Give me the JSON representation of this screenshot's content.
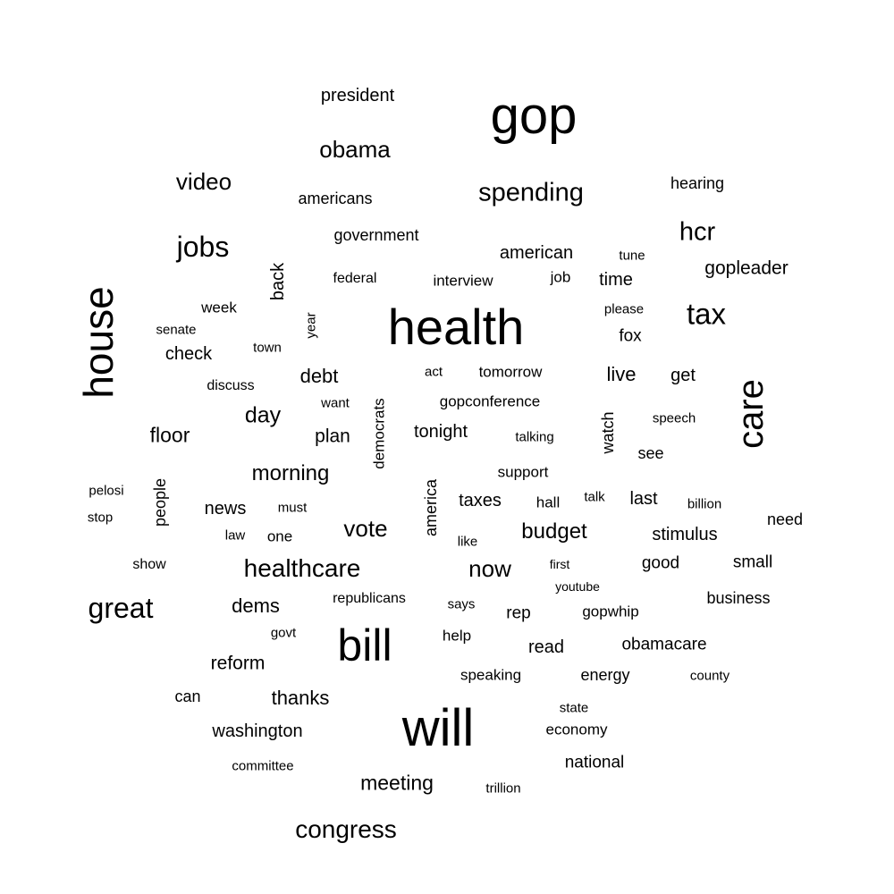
{
  "text_color": "#000000",
  "background_color": "#ffffff",
  "words": [
    {
      "text": "gop",
      "rotated": false
    },
    {
      "text": "health",
      "rotated": false
    },
    {
      "text": "will",
      "rotated": false
    },
    {
      "text": "bill",
      "rotated": false
    },
    {
      "text": "house",
      "rotated": true
    },
    {
      "text": "care",
      "rotated": true
    },
    {
      "text": "president",
      "rotated": false
    },
    {
      "text": "obama",
      "rotated": false
    },
    {
      "text": "spending",
      "rotated": false
    },
    {
      "text": "video",
      "rotated": false
    },
    {
      "text": "americans",
      "rotated": false
    },
    {
      "text": "hearing",
      "rotated": false
    },
    {
      "text": "hcr",
      "rotated": false
    },
    {
      "text": "jobs",
      "rotated": false
    },
    {
      "text": "government",
      "rotated": false
    },
    {
      "text": "american",
      "rotated": false
    },
    {
      "text": "tune",
      "rotated": false
    },
    {
      "text": "gopleader",
      "rotated": false
    },
    {
      "text": "back",
      "rotated": true
    },
    {
      "text": "federal",
      "rotated": false
    },
    {
      "text": "interview",
      "rotated": false
    },
    {
      "text": "job",
      "rotated": false
    },
    {
      "text": "time",
      "rotated": false
    },
    {
      "text": "tax",
      "rotated": false
    },
    {
      "text": "week",
      "rotated": false
    },
    {
      "text": "please",
      "rotated": false
    },
    {
      "text": "senate",
      "rotated": false
    },
    {
      "text": "year",
      "rotated": true
    },
    {
      "text": "fox",
      "rotated": false
    },
    {
      "text": "town",
      "rotated": false
    },
    {
      "text": "check",
      "rotated": false
    },
    {
      "text": "act",
      "rotated": false
    },
    {
      "text": "tomorrow",
      "rotated": false
    },
    {
      "text": "debt",
      "rotated": false
    },
    {
      "text": "live",
      "rotated": false
    },
    {
      "text": "get",
      "rotated": false
    },
    {
      "text": "discuss",
      "rotated": false
    },
    {
      "text": "want",
      "rotated": false
    },
    {
      "text": "gopconference",
      "rotated": false
    },
    {
      "text": "democrats",
      "rotated": true
    },
    {
      "text": "day",
      "rotated": false
    },
    {
      "text": "speech",
      "rotated": false
    },
    {
      "text": "watch",
      "rotated": true
    },
    {
      "text": "floor",
      "rotated": false
    },
    {
      "text": "plan",
      "rotated": false
    },
    {
      "text": "tonight",
      "rotated": false
    },
    {
      "text": "talking",
      "rotated": false
    },
    {
      "text": "see",
      "rotated": false
    },
    {
      "text": "morning",
      "rotated": false
    },
    {
      "text": "support",
      "rotated": false
    },
    {
      "text": "pelosi",
      "rotated": false
    },
    {
      "text": "people",
      "rotated": true
    },
    {
      "text": "america",
      "rotated": true
    },
    {
      "text": "talk",
      "rotated": false
    },
    {
      "text": "taxes",
      "rotated": false
    },
    {
      "text": "hall",
      "rotated": false
    },
    {
      "text": "last",
      "rotated": false
    },
    {
      "text": "billion",
      "rotated": false
    },
    {
      "text": "stop",
      "rotated": false
    },
    {
      "text": "news",
      "rotated": false
    },
    {
      "text": "must",
      "rotated": false
    },
    {
      "text": "need",
      "rotated": false
    },
    {
      "text": "vote",
      "rotated": false
    },
    {
      "text": "budget",
      "rotated": false
    },
    {
      "text": "stimulus",
      "rotated": false
    },
    {
      "text": "law",
      "rotated": false
    },
    {
      "text": "one",
      "rotated": false
    },
    {
      "text": "like",
      "rotated": false
    },
    {
      "text": "show",
      "rotated": false
    },
    {
      "text": "healthcare",
      "rotated": false
    },
    {
      "text": "now",
      "rotated": false
    },
    {
      "text": "first",
      "rotated": false
    },
    {
      "text": "good",
      "rotated": false
    },
    {
      "text": "small",
      "rotated": false
    },
    {
      "text": "youtube",
      "rotated": false
    },
    {
      "text": "great",
      "rotated": false
    },
    {
      "text": "dems",
      "rotated": false
    },
    {
      "text": "republicans",
      "rotated": false
    },
    {
      "text": "says",
      "rotated": false
    },
    {
      "text": "rep",
      "rotated": false
    },
    {
      "text": "gopwhip",
      "rotated": false
    },
    {
      "text": "business",
      "rotated": false
    },
    {
      "text": "govt",
      "rotated": false
    },
    {
      "text": "help",
      "rotated": false
    },
    {
      "text": "read",
      "rotated": false
    },
    {
      "text": "obamacare",
      "rotated": false
    },
    {
      "text": "reform",
      "rotated": false
    },
    {
      "text": "speaking",
      "rotated": false
    },
    {
      "text": "energy",
      "rotated": false
    },
    {
      "text": "county",
      "rotated": false
    },
    {
      "text": "can",
      "rotated": false
    },
    {
      "text": "thanks",
      "rotated": false
    },
    {
      "text": "state",
      "rotated": false
    },
    {
      "text": "washington",
      "rotated": false
    },
    {
      "text": "economy",
      "rotated": false
    },
    {
      "text": "committee",
      "rotated": false
    },
    {
      "text": "national",
      "rotated": false
    },
    {
      "text": "meeting",
      "rotated": false
    },
    {
      "text": "trillion",
      "rotated": false
    },
    {
      "text": "congress",
      "rotated": false
    }
  ]
}
